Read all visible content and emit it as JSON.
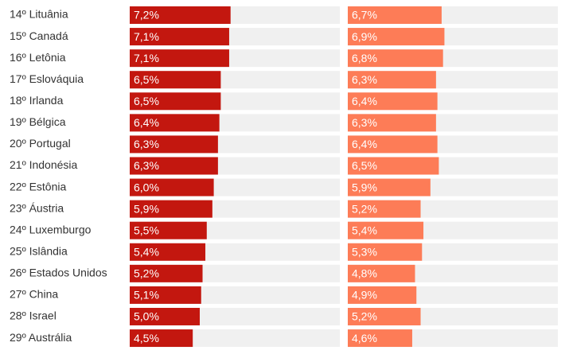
{
  "chart_data": {
    "type": "bar",
    "orientation": "horizontal",
    "categories": [
      "14º Lituânia",
      "15º Canadá",
      "16º Letônia",
      "17º Eslováquia",
      "18º Irlanda",
      "19º Bélgica",
      "20º Portugal",
      "21º Indonésia",
      "22º Estônia",
      "23º Áustria",
      "24º Luxemburgo",
      "25º Islândia",
      "26º Estados Unidos",
      "27º China",
      "28º Israel",
      "29º Austrália"
    ],
    "series": [
      {
        "color": "#c3170f",
        "values": [
          7.2,
          7.1,
          7.1,
          6.5,
          6.5,
          6.4,
          6.3,
          6.3,
          6.0,
          5.9,
          5.5,
          5.4,
          5.2,
          5.1,
          5.0,
          4.5
        ],
        "value_labels": [
          "7,2%",
          "7,1%",
          "7,1%",
          "6,5%",
          "6,5%",
          "6,4%",
          "6,3%",
          "6,3%",
          "6,0%",
          "5,9%",
          "5,5%",
          "5,4%",
          "5,2%",
          "5,1%",
          "5,0%",
          "4,5%"
        ]
      },
      {
        "color": "#fd7c57",
        "values": [
          6.7,
          6.9,
          6.8,
          6.3,
          6.4,
          6.3,
          6.4,
          6.5,
          5.9,
          5.2,
          5.4,
          5.3,
          4.8,
          4.9,
          5.2,
          4.6
        ],
        "value_labels": [
          "6,7%",
          "6,9%",
          "6,8%",
          "6,3%",
          "6,4%",
          "6,3%",
          "6,4%",
          "6,5%",
          "5,9%",
          "5,2%",
          "5,4%",
          "5,3%",
          "4,8%",
          "4,9%",
          "5,2%",
          "4,6%"
        ]
      }
    ],
    "xlim": [
      0,
      15
    ]
  }
}
